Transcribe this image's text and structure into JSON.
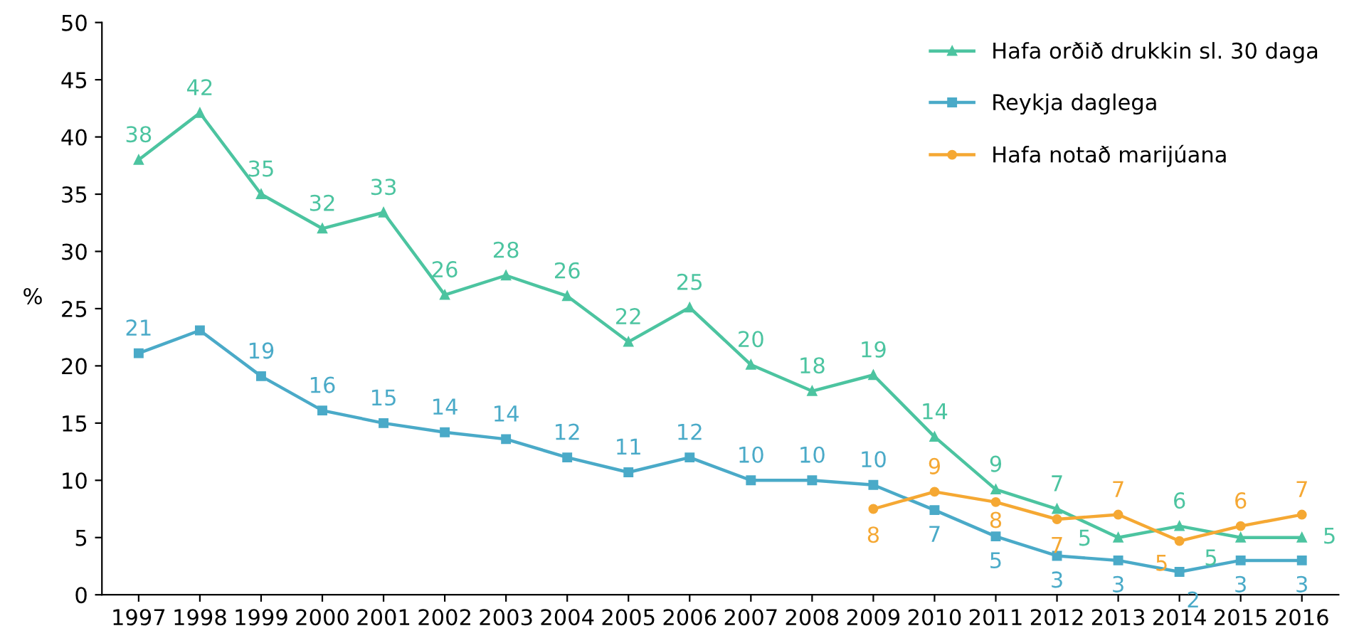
{
  "chart_data": {
    "type": "line",
    "categories": [
      "1997",
      "1998",
      "1999",
      "2000",
      "2001",
      "2002",
      "2003",
      "2004",
      "2005",
      "2006",
      "2007",
      "2008",
      "2009",
      "2010",
      "2011",
      "2012",
      "2013",
      "2014",
      "2015",
      "2016"
    ],
    "ylabel": "%",
    "ylim": [
      0,
      50
    ],
    "yticks": [
      0,
      5,
      10,
      15,
      20,
      25,
      30,
      35,
      40,
      45,
      50
    ],
    "grid": false,
    "legend": "top right",
    "series": [
      {
        "name": "Hafa orðið drukkin sl. 30 daga",
        "color": "#4cc4a0",
        "marker": "triangle",
        "values": [
          38.0,
          42.1,
          35.0,
          32.0,
          33.4,
          26.2,
          27.9,
          26.1,
          22.1,
          25.1,
          20.1,
          17.8,
          19.2,
          13.8,
          9.2,
          7.5,
          5.0,
          6.0,
          5.0,
          5.0
        ],
        "value_labels": [
          "38",
          "42",
          "35",
          "32",
          "33",
          "26",
          "28",
          "26",
          "22",
          "25",
          "20",
          "18",
          "19",
          "14",
          "9",
          "7",
          "5",
          "6",
          "5",
          "5"
        ]
      },
      {
        "name": "Reykja daglega",
        "color": "#4aaac8",
        "marker": "square",
        "values": [
          21.1,
          23.1,
          19.1,
          16.1,
          15.0,
          14.2,
          13.6,
          12.0,
          10.7,
          12.0,
          10.0,
          10.0,
          9.6,
          7.4,
          5.1,
          3.4,
          3.0,
          2.0,
          3.0,
          3.0
        ],
        "value_labels": [
          "21",
          null,
          "19",
          "16",
          "15",
          "14",
          "14",
          "12",
          "11",
          "12",
          "10",
          "10",
          "10",
          "7",
          "5",
          "3",
          "3",
          "2",
          "3",
          "3"
        ]
      },
      {
        "name": "Hafa notað marijúana",
        "color": "#f5a833",
        "marker": "circle",
        "values": [
          null,
          null,
          null,
          null,
          null,
          null,
          null,
          null,
          null,
          null,
          null,
          null,
          7.5,
          9.0,
          8.1,
          6.6,
          7.0,
          4.7,
          6.0,
          7.0
        ],
        "value_labels": [
          null,
          null,
          null,
          null,
          null,
          null,
          null,
          null,
          null,
          null,
          null,
          null,
          "8",
          "9",
          "8",
          "7",
          "7",
          "5",
          "6",
          "7"
        ]
      }
    ]
  }
}
